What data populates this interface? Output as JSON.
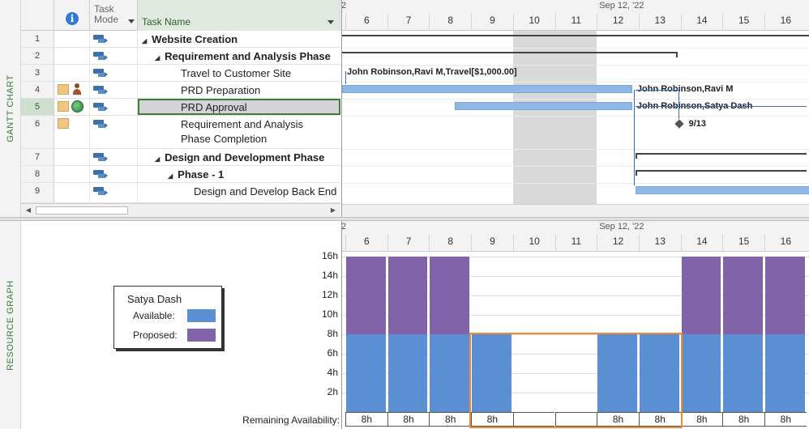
{
  "views": {
    "top": "GANTT CHART",
    "bottom": "RESOURCE GRAPH"
  },
  "columns": {
    "mode": "Task\nMode",
    "name": "Task Name"
  },
  "tasks": [
    {
      "id": "1",
      "name": "Website Creation",
      "level": 0,
      "summary": true
    },
    {
      "id": "2",
      "name": "Requirement and Analysis Phase",
      "level": 1,
      "summary": true
    },
    {
      "id": "3",
      "name": "Travel to Customer Site",
      "level": 2,
      "summary": false
    },
    {
      "id": "4",
      "name": "PRD Preparation",
      "level": 2,
      "summary": false,
      "indicators": [
        "note-icon",
        "person-icon"
      ]
    },
    {
      "id": "5",
      "name": "PRD Approval",
      "level": 2,
      "summary": false,
      "selected": true,
      "indicators": [
        "note-icon",
        "globe-icon"
      ]
    },
    {
      "id": "6",
      "name": "Requirement and Analysis\nPhase Completion",
      "level": 2,
      "summary": false,
      "indicators": [
        "note-icon"
      ]
    },
    {
      "id": "7",
      "name": "Design and Development Phase",
      "level": 1,
      "summary": true
    },
    {
      "id": "8",
      "name": "Phase - 1",
      "level": 2,
      "summary": true
    },
    {
      "id": "9",
      "name": "Design and Develop Back End",
      "level": 3,
      "summary": false
    }
  ],
  "timescale": {
    "week_labels": [
      {
        "day": "6",
        "text": "2",
        "offset": -1
      },
      {
        "day": "12",
        "text": "Sep 12, '22"
      }
    ],
    "days": [
      "6",
      "7",
      "8",
      "9",
      "10",
      "11",
      "12",
      "13",
      "14",
      "15",
      "16"
    ]
  },
  "gantt_labels": {
    "travel": "John Robinson,Ravi M,Travel[$1,000.00]",
    "prd_prep": "John Robinson,Ravi M",
    "prd_approval": "John Robinson,Satya Dash",
    "milestone": "9/13"
  },
  "legend": {
    "title": "Satya Dash",
    "available": "Available:",
    "proposed": "Proposed:"
  },
  "colors": {
    "available": "#5b8fd4",
    "proposed": "#8063a8",
    "highlight": "#f08a30"
  },
  "y_axis": [
    "16h",
    "14h",
    "12h",
    "10h",
    "8h",
    "6h",
    "4h",
    "2h"
  ],
  "remaining_label": "Remaining Availability:",
  "chart_data": {
    "type": "bar",
    "categories": [
      "6",
      "7",
      "8",
      "9",
      "10",
      "11",
      "12",
      "13",
      "14",
      "15",
      "16"
    ],
    "series": [
      {
        "name": "Available",
        "values": [
          8,
          8,
          8,
          8,
          0,
          0,
          8,
          8,
          8,
          8,
          8
        ]
      },
      {
        "name": "Proposed",
        "values": [
          8,
          8,
          8,
          0,
          0,
          0,
          0,
          0,
          8,
          8,
          8
        ]
      }
    ],
    "ylim": [
      0,
      16
    ],
    "remaining": [
      "8h",
      "8h",
      "8h",
      "8h",
      "",
      "",
      "8h",
      "8h",
      "8h",
      "8h",
      "8h"
    ]
  }
}
